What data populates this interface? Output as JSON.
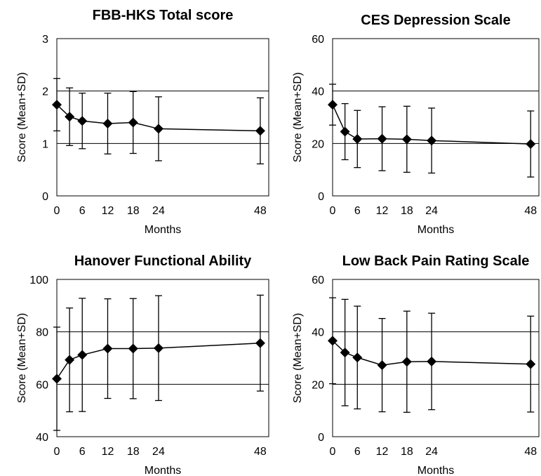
{
  "chart_data": [
    {
      "type": "line",
      "title": "FBB-HKS Total score",
      "xlabel": "Months",
      "ylabel": "Score (Mean+SD)",
      "ylim": [
        0,
        3
      ],
      "yticks": [
        0,
        1,
        2,
        3
      ],
      "gridlines": [
        1,
        2
      ],
      "x": [
        0,
        3,
        6,
        12,
        18,
        24,
        48
      ],
      "xtick_labels": [
        0,
        6,
        12,
        18,
        24,
        48
      ],
      "series": [
        {
          "mean": [
            1.74,
            1.51,
            1.43,
            1.38,
            1.4,
            1.28,
            1.24
          ],
          "sd": [
            0.5,
            0.55,
            0.53,
            0.58,
            0.59,
            0.61,
            0.63
          ]
        }
      ],
      "grid": true,
      "legend": "none",
      "marker": "diamond",
      "color": "#000000"
    },
    {
      "type": "line",
      "title": "CES Depression Scale",
      "xlabel": "Months",
      "ylabel": "Score (Mean+SD)",
      "ylim": [
        0,
        60
      ],
      "yticks": [
        0,
        20,
        40,
        60
      ],
      "gridlines": [
        20,
        40
      ],
      "x": [
        0,
        3,
        6,
        12,
        18,
        24,
        48
      ],
      "xtick_labels": [
        0,
        6,
        12,
        18,
        24,
        48
      ],
      "series": [
        {
          "mean": [
            34.8,
            24.5,
            21.7,
            21.8,
            21.6,
            21.1,
            19.8
          ],
          "sd": [
            7.8,
            10.7,
            10.9,
            12.2,
            12.6,
            12.4,
            12.6
          ]
        }
      ],
      "grid": true,
      "legend": "none",
      "marker": "diamond",
      "color": "#000000"
    },
    {
      "type": "line",
      "title": "Hanover Functional Ability",
      "xlabel": "Months",
      "ylabel": "Score (Mean+SD)",
      "ylim": [
        40,
        100
      ],
      "yticks": [
        40,
        60,
        80,
        100
      ],
      "gridlines": [
        60,
        80
      ],
      "x": [
        0,
        3,
        6,
        12,
        18,
        24,
        48
      ],
      "xtick_labels": [
        0,
        6,
        12,
        18,
        24,
        48
      ],
      "series": [
        {
          "mean": [
            62.1,
            69.3,
            71.2,
            73.6,
            73.6,
            73.8,
            75.7
          ],
          "sd": [
            19.7,
            19.8,
            21.6,
            19.0,
            19.1,
            20.0,
            18.3
          ]
        }
      ],
      "grid": true,
      "legend": "none",
      "marker": "diamond",
      "color": "#000000"
    },
    {
      "type": "line",
      "title": "Low Back Pain Rating Scale",
      "xlabel": "Months",
      "ylabel": "Score (Mean+SD)",
      "ylim": [
        0,
        60
      ],
      "yticks": [
        0,
        20,
        40,
        60
      ],
      "gridlines": [
        20,
        40
      ],
      "x": [
        0,
        3,
        6,
        12,
        18,
        24,
        48
      ],
      "xtick_labels": [
        0,
        6,
        12,
        18,
        24,
        48
      ],
      "series": [
        {
          "mean": [
            36.6,
            32.1,
            30.2,
            27.3,
            28.6,
            28.7,
            27.7
          ],
          "sd": [
            16.4,
            20.3,
            19.6,
            17.8,
            19.3,
            18.4,
            18.3
          ]
        }
      ],
      "grid": true,
      "legend": "none",
      "marker": "diamond",
      "color": "#000000"
    }
  ]
}
